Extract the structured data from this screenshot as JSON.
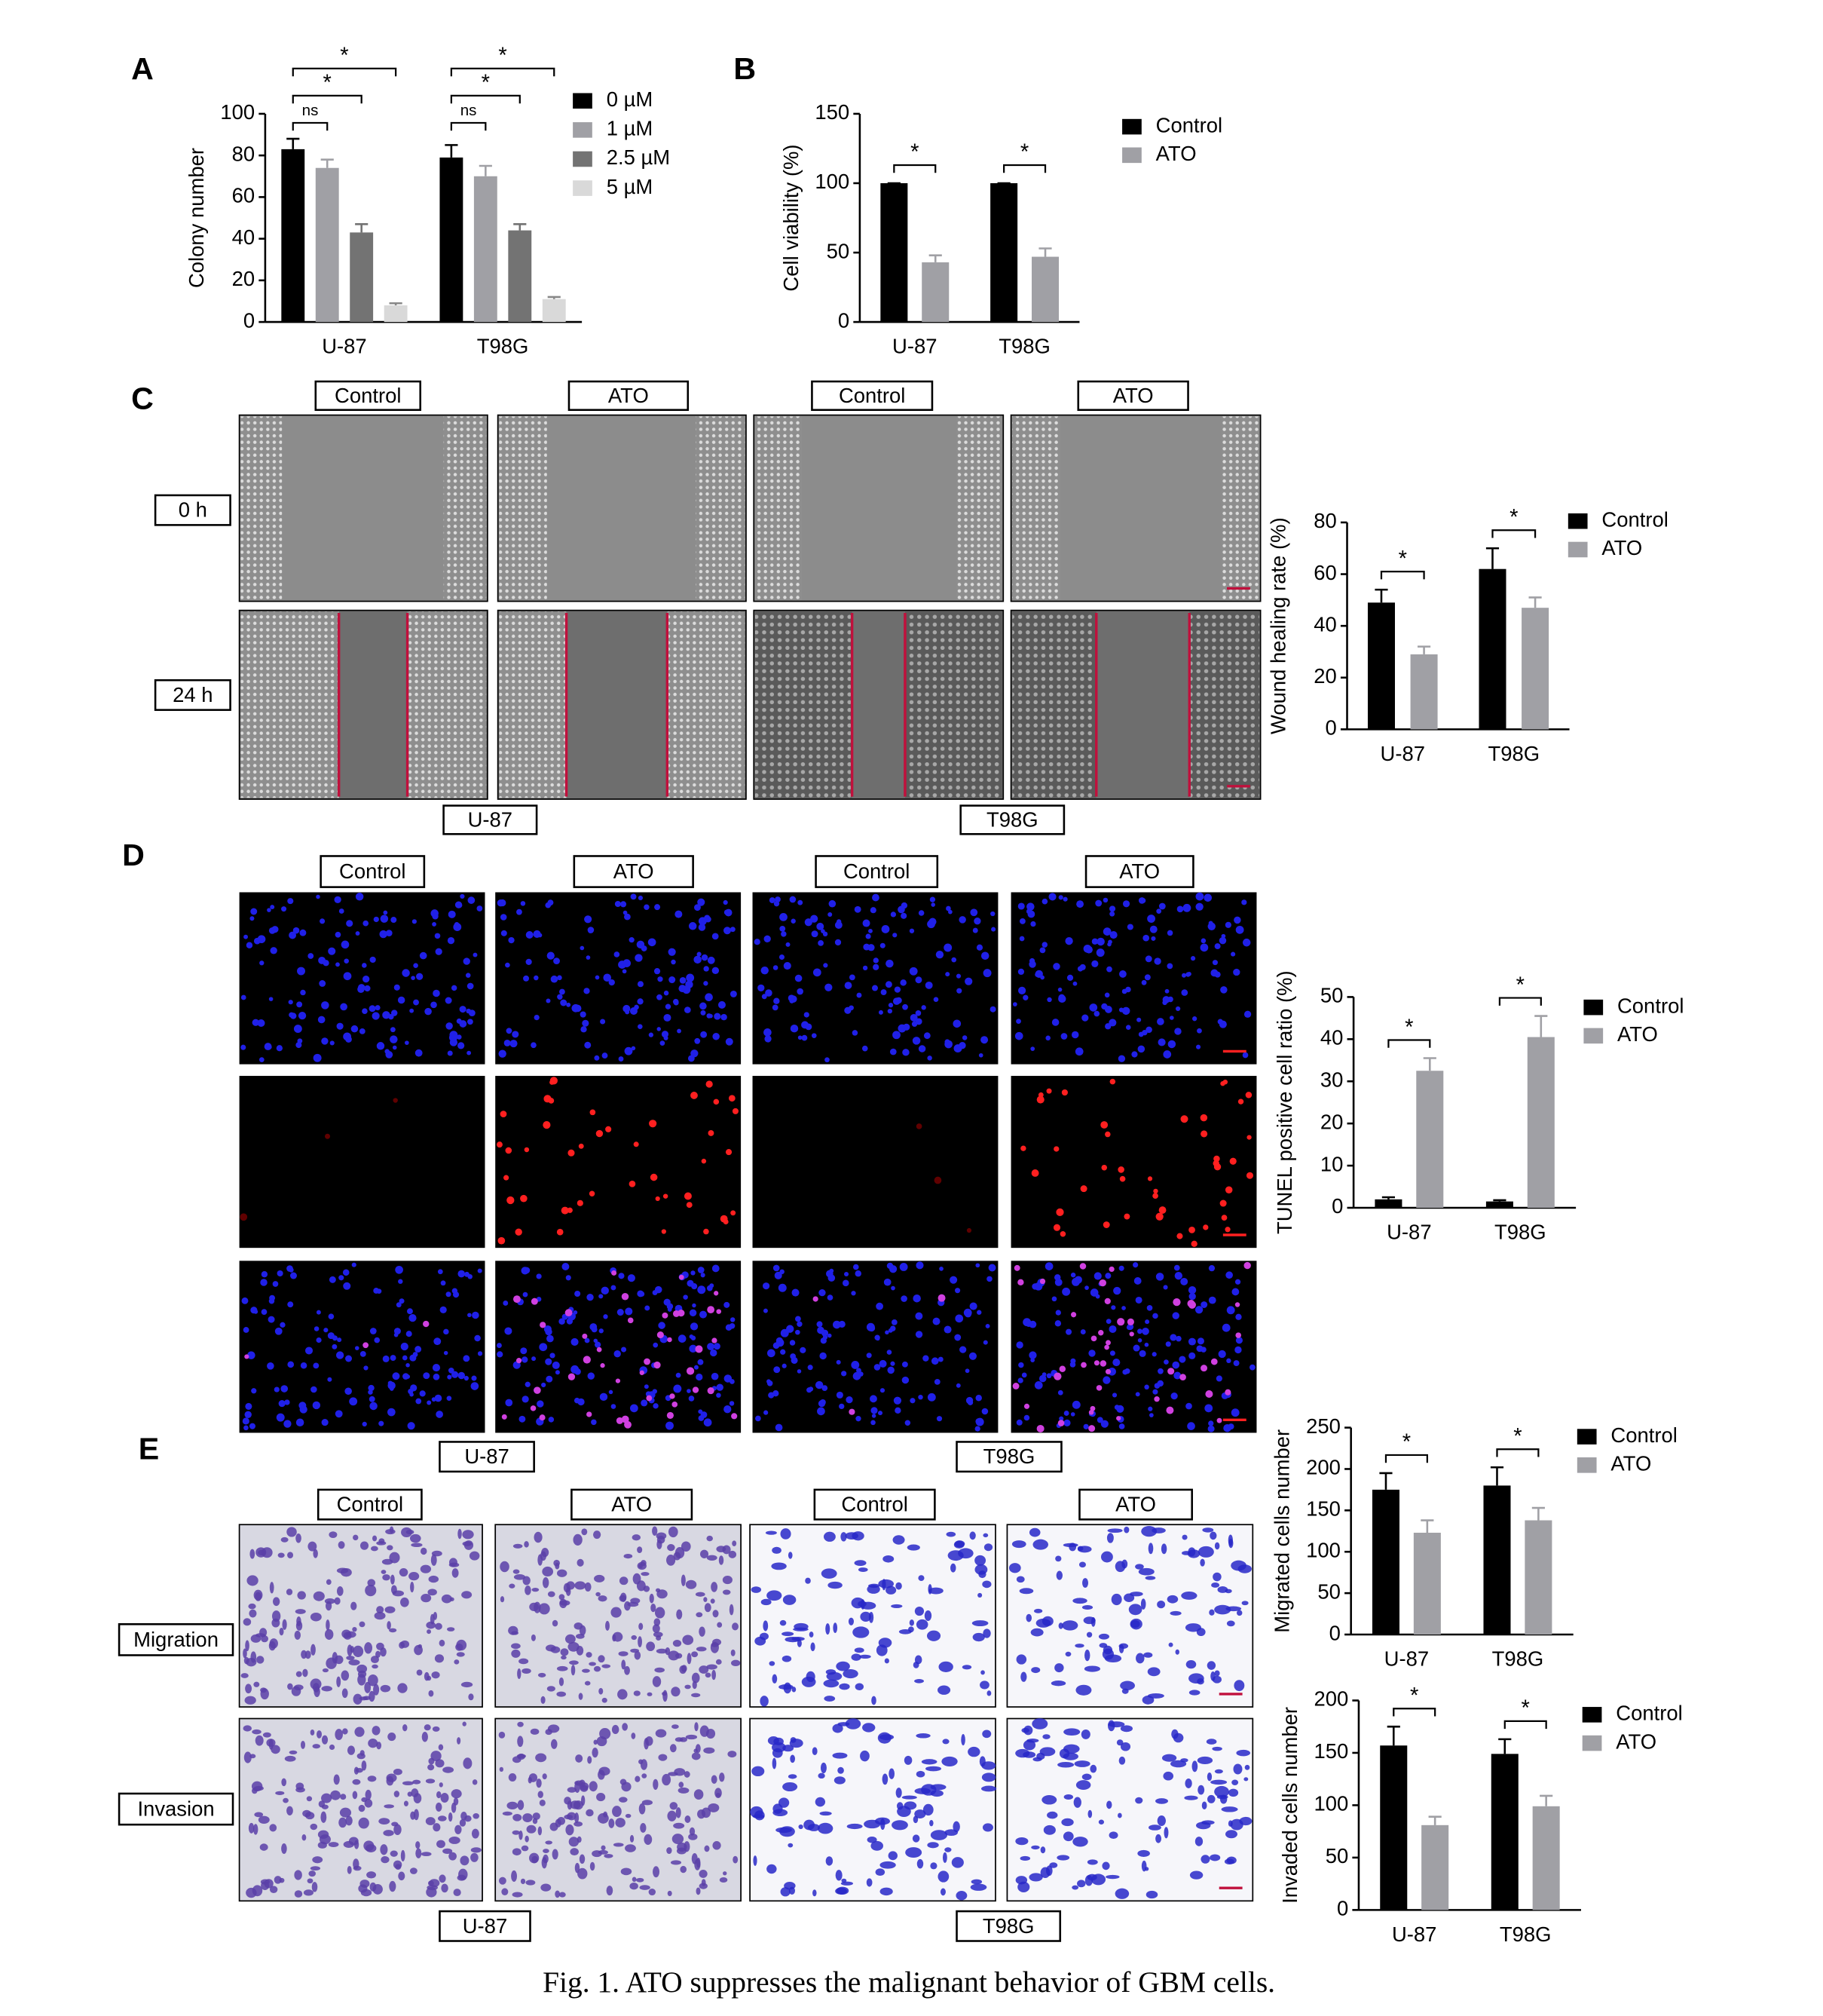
{
  "figure": {
    "panel_letters": [
      "A",
      "B",
      "C",
      "D",
      "E"
    ],
    "caption": "Fig. 1.  ATO suppresses the malignant behavior of GBM cells.",
    "C": {
      "column_labels": [
        "Control",
        "ATO",
        "Control",
        "ATO"
      ],
      "row_labels": [
        "0 h",
        "24 h"
      ],
      "cell_lines": [
        "U-87",
        "T98G"
      ]
    },
    "D": {
      "column_labels": [
        "Control",
        "ATO",
        "Control",
        "ATO"
      ],
      "cell_lines": [
        "U-87",
        "T98G"
      ]
    },
    "E": {
      "column_labels": [
        "Control",
        "ATO",
        "Control",
        "ATO"
      ],
      "row_labels": [
        "Migration",
        "Invasion"
      ],
      "cell_lines": [
        "U-87",
        "T98G"
      ]
    }
  },
  "chart_data": [
    {
      "type": "bar",
      "ylabel": "Colony number",
      "categories": [
        "U-87",
        "T98G"
      ],
      "series": [
        {
          "name": "0 µM",
          "color": "#000000",
          "values": [
            83,
            79
          ],
          "errors": [
            5,
            6
          ]
        },
        {
          "name": "1 µM",
          "color": "#a0a0a5",
          "values": [
            74,
            70
          ],
          "errors": [
            4,
            5
          ]
        },
        {
          "name": "2.5 µM",
          "color": "#737373",
          "values": [
            43,
            44
          ],
          "errors": [
            4,
            3
          ]
        },
        {
          "name": "5 µM",
          "color": "#d9d9d9",
          "values": [
            8,
            11
          ],
          "errors": [
            1,
            1
          ]
        }
      ],
      "ylim": [
        0,
        100
      ],
      "yticks": [
        0,
        20,
        40,
        60,
        80,
        100
      ],
      "annotations": [
        "ns",
        "*",
        "*",
        "ns",
        "*",
        "*"
      ]
    },
    {
      "type": "bar",
      "ylabel": "Cell viability (%)",
      "categories": [
        "U-87",
        "T98G"
      ],
      "series": [
        {
          "name": "Control",
          "color": "#000000",
          "values": [
            100,
            100
          ],
          "errors": [
            0,
            0
          ]
        },
        {
          "name": "ATO",
          "color": "#a0a0a5",
          "values": [
            43,
            47
          ],
          "errors": [
            5,
            6
          ]
        }
      ],
      "ylim": [
        0,
        150
      ],
      "yticks": [
        0,
        50,
        100,
        150
      ],
      "annotations": [
        "*",
        "*"
      ]
    },
    {
      "type": "bar",
      "ylabel": "Wound healing rate (%)",
      "categories": [
        "U-87",
        "T98G"
      ],
      "series": [
        {
          "name": "Control",
          "color": "#000000",
          "values": [
            49,
            62
          ],
          "errors": [
            5,
            8
          ]
        },
        {
          "name": "ATO",
          "color": "#a0a0a5",
          "values": [
            29,
            47
          ],
          "errors": [
            3,
            4
          ]
        }
      ],
      "ylim": [
        0,
        80
      ],
      "yticks": [
        0,
        20,
        40,
        60,
        80
      ],
      "annotations": [
        "*",
        "*"
      ]
    },
    {
      "type": "bar",
      "ylabel": "TUNEL positive cell ratio (%)",
      "categories": [
        "U-87",
        "T98G"
      ],
      "series": [
        {
          "name": "Control",
          "color": "#000000",
          "values": [
            2,
            1.5
          ],
          "errors": [
            0.5,
            0.3
          ]
        },
        {
          "name": "ATO",
          "color": "#a0a0a5",
          "values": [
            32.5,
            40.5
          ],
          "errors": [
            3,
            5
          ]
        }
      ],
      "ylim": [
        0,
        50
      ],
      "yticks": [
        0,
        10,
        20,
        30,
        40,
        50
      ],
      "annotations": [
        "*",
        "*"
      ]
    },
    {
      "type": "bar",
      "ylabel": "Migrated cells number",
      "categories": [
        "U-87",
        "T98G"
      ],
      "series": [
        {
          "name": "Control",
          "color": "#000000",
          "values": [
            175,
            180
          ],
          "errors": [
            20,
            22
          ]
        },
        {
          "name": "ATO",
          "color": "#a0a0a5",
          "values": [
            123,
            138
          ],
          "errors": [
            15,
            15
          ]
        }
      ],
      "ylim": [
        0,
        250
      ],
      "yticks": [
        0,
        50,
        100,
        150,
        200,
        250
      ],
      "annotations": [
        "*",
        "*"
      ]
    },
    {
      "type": "bar",
      "ylabel": "Invaded cells number",
      "categories": [
        "U-87",
        "T98G"
      ],
      "series": [
        {
          "name": "Control",
          "color": "#000000",
          "values": [
            157,
            149
          ],
          "errors": [
            18,
            14
          ]
        },
        {
          "name": "ATO",
          "color": "#a0a0a5",
          "values": [
            81,
            99
          ],
          "errors": [
            8,
            10
          ]
        }
      ],
      "ylim": [
        0,
        200
      ],
      "yticks": [
        0,
        50,
        100,
        150,
        200
      ],
      "annotations": [
        "*",
        "*"
      ]
    }
  ]
}
